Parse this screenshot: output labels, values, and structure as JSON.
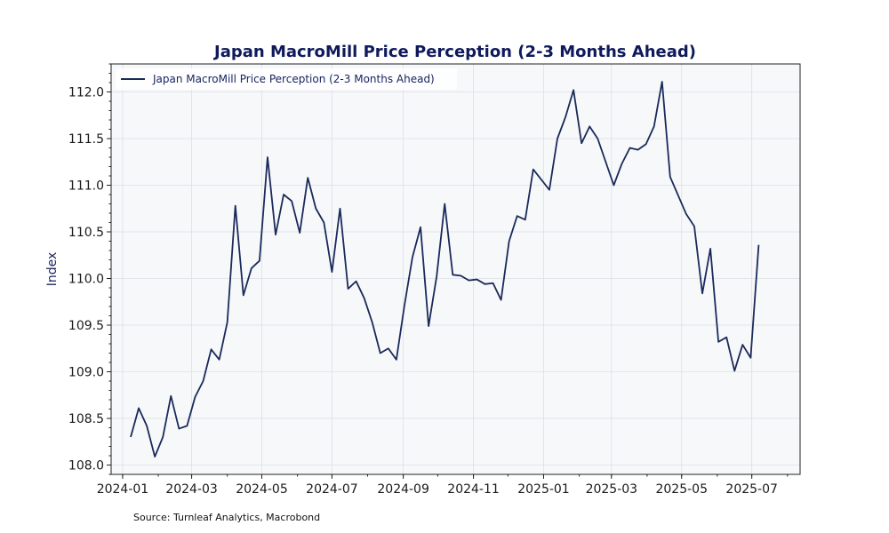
{
  "chart_data": {
    "type": "line",
    "title": "Japan MacroMill Price Perception (2-3 Months Ahead)",
    "xlabel": "",
    "ylabel": "Index",
    "ylim": [
      107.9,
      112.3
    ],
    "yticks": [
      108.0,
      108.5,
      109.0,
      109.5,
      110.0,
      110.5,
      111.0,
      111.5,
      112.0
    ],
    "xlim": [
      "2023-12-22",
      "2025-08-12"
    ],
    "xticks": [
      "2024-01",
      "2024-03",
      "2024-05",
      "2024-07",
      "2024-09",
      "2024-11",
      "2025-01",
      "2025-03",
      "2025-05",
      "2025-07"
    ],
    "grid": true,
    "legend": {
      "position": "top-left"
    },
    "colors": {
      "line": "#1a2a5a",
      "plot_bg": "#f7f8fa",
      "title": "#0f1a5c"
    },
    "source": "Source: Turnleaf Analytics, Macrobond",
    "series": [
      {
        "name": "Japan MacroMill Price Perception (2-3 Months Ahead)",
        "points": [
          [
            "2024-01-08",
            108.3
          ],
          [
            "2024-01-15",
            108.61
          ],
          [
            "2024-01-22",
            108.42
          ],
          [
            "2024-01-29",
            108.09
          ],
          [
            "2024-02-05",
            108.3
          ],
          [
            "2024-02-12",
            108.74
          ],
          [
            "2024-02-19",
            108.39
          ],
          [
            "2024-02-26",
            108.42
          ],
          [
            "2024-03-04",
            108.73
          ],
          [
            "2024-03-11",
            108.9
          ],
          [
            "2024-03-18",
            109.24
          ],
          [
            "2024-03-25",
            109.13
          ],
          [
            "2024-04-01",
            109.53
          ],
          [
            "2024-04-08",
            110.78
          ],
          [
            "2024-04-15",
            109.82
          ],
          [
            "2024-04-22",
            110.11
          ],
          [
            "2024-04-29",
            110.19
          ],
          [
            "2024-05-06",
            111.3
          ],
          [
            "2024-05-13",
            110.47
          ],
          [
            "2024-05-20",
            110.9
          ],
          [
            "2024-05-27",
            110.83
          ],
          [
            "2024-06-03",
            110.49
          ],
          [
            "2024-06-10",
            111.08
          ],
          [
            "2024-06-17",
            110.75
          ],
          [
            "2024-06-24",
            110.6
          ],
          [
            "2024-07-01",
            110.07
          ],
          [
            "2024-07-08",
            110.75
          ],
          [
            "2024-07-15",
            109.89
          ],
          [
            "2024-07-22",
            109.97
          ],
          [
            "2024-07-29",
            109.79
          ],
          [
            "2024-08-05",
            109.53
          ],
          [
            "2024-08-12",
            109.2
          ],
          [
            "2024-08-19",
            109.25
          ],
          [
            "2024-08-26",
            109.13
          ],
          [
            "2024-09-02",
            109.71
          ],
          [
            "2024-09-09",
            110.23
          ],
          [
            "2024-09-16",
            110.55
          ],
          [
            "2024-09-23",
            109.49
          ],
          [
            "2024-09-30",
            110.02
          ],
          [
            "2024-10-07",
            110.8
          ],
          [
            "2024-10-14",
            110.04
          ],
          [
            "2024-10-21",
            110.03
          ],
          [
            "2024-10-28",
            109.98
          ],
          [
            "2024-11-04",
            109.99
          ],
          [
            "2024-11-11",
            109.94
          ],
          [
            "2024-11-18",
            109.95
          ],
          [
            "2024-11-25",
            109.77
          ],
          [
            "2024-12-02",
            110.4
          ],
          [
            "2024-12-09",
            110.67
          ],
          [
            "2024-12-16",
            110.63
          ],
          [
            "2024-12-23",
            111.17
          ],
          [
            "2024-12-30",
            111.06
          ],
          [
            "2025-01-06",
            110.95
          ],
          [
            "2025-01-13",
            111.5
          ],
          [
            "2025-01-20",
            111.73
          ],
          [
            "2025-01-27",
            112.02
          ],
          [
            "2025-02-03",
            111.45
          ],
          [
            "2025-02-10",
            111.63
          ],
          [
            "2025-02-17",
            111.5
          ],
          [
            "2025-02-24",
            111.25
          ],
          [
            "2025-03-03",
            111.0
          ],
          [
            "2025-03-10",
            111.23
          ],
          [
            "2025-03-17",
            111.4
          ],
          [
            "2025-03-24",
            111.38
          ],
          [
            "2025-03-31",
            111.44
          ],
          [
            "2025-04-07",
            111.63
          ],
          [
            "2025-04-14",
            112.11
          ],
          [
            "2025-04-21",
            111.09
          ],
          [
            "2025-04-28",
            110.89
          ],
          [
            "2025-05-05",
            110.69
          ],
          [
            "2025-05-12",
            110.56
          ],
          [
            "2025-05-19",
            109.84
          ],
          [
            "2025-05-26",
            110.32
          ],
          [
            "2025-06-02",
            109.32
          ],
          [
            "2025-06-09",
            109.37
          ],
          [
            "2025-06-16",
            109.01
          ],
          [
            "2025-06-23",
            109.29
          ],
          [
            "2025-06-30",
            109.15
          ],
          [
            "2025-07-07",
            110.36
          ]
        ]
      }
    ]
  }
}
